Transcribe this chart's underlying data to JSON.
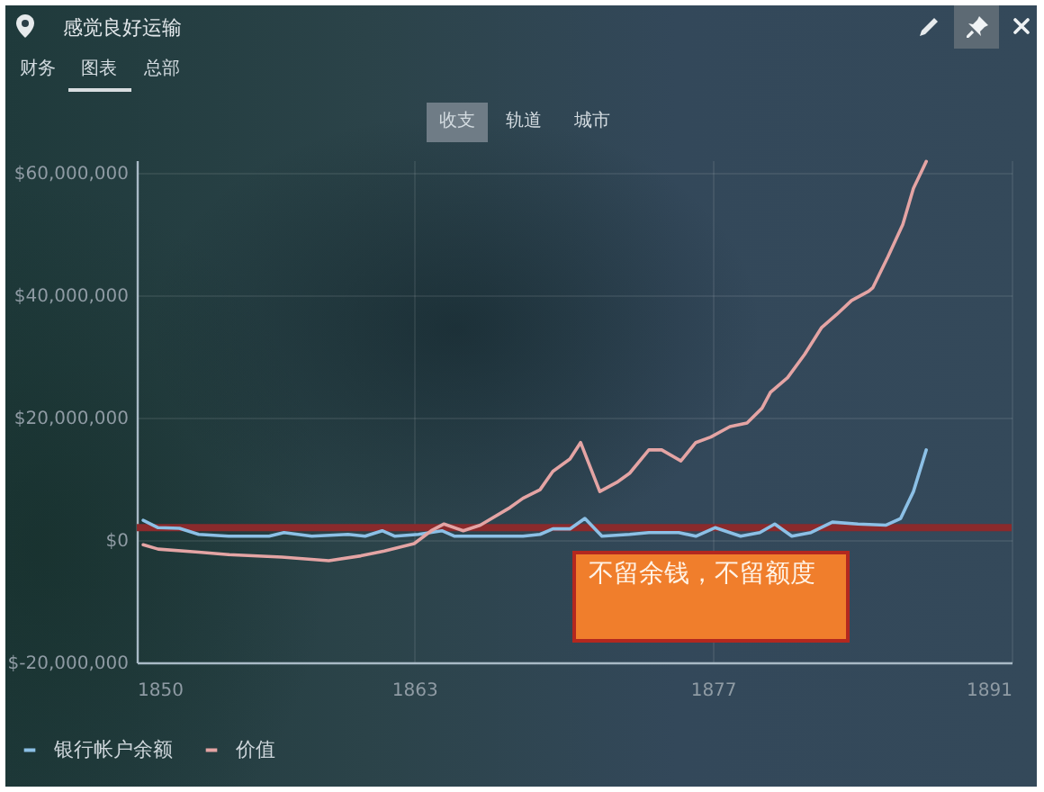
{
  "chart_data": {
    "type": "line",
    "title": "感觉良好运输",
    "annotations": [
      "财务",
      "图表",
      "总部",
      "收支",
      "轨道",
      "城市",
      "不留余钱，不留额度"
    ],
    "series": [
      {
        "name": "银行帐户余额",
        "color": "#8cc0e6",
        "x": [
          1850.3,
          1851.0,
          1852.0,
          1852.9,
          1854.3,
          1856.2,
          1856.9,
          1858.2,
          1859.9,
          1860.7,
          1861.5,
          1862.1,
          1863.2,
          1864.3,
          1864.9,
          1868.1,
          1868.9,
          1869.5,
          1870.3,
          1871.0,
          1871.8,
          1873.1,
          1874.0,
          1875.4,
          1876.2,
          1877.1,
          1878.3,
          1879.2,
          1879.9,
          1880.7,
          1881.6,
          1882.6,
          1883.8,
          1885.1,
          1885.8,
          1886.4,
          1887.0
        ],
        "values": [
          3200000,
          2000000,
          1900000,
          900000,
          600000,
          600000,
          1200000,
          600000,
          900000,
          600000,
          1500000,
          600000,
          900000,
          1500000,
          600000,
          600000,
          900000,
          1800000,
          1800000,
          3500000,
          600000,
          900000,
          1200000,
          1200000,
          600000,
          2000000,
          600000,
          1200000,
          2600000,
          600000,
          1200000,
          2900000,
          2600000,
          2400000,
          3500000,
          7900000,
          14700000
        ]
      },
      {
        "name": "价值",
        "color": "#e4a4a4",
        "x": [
          1850.3,
          1851.0,
          1852.9,
          1854.3,
          1856.8,
          1859.0,
          1860.5,
          1861.6,
          1863.0,
          1863.8,
          1864.4,
          1865.3,
          1866.1,
          1867.5,
          1868.1,
          1868.9,
          1869.5,
          1870.3,
          1870.8,
          1871.7,
          1872.5,
          1873.1,
          1874.0,
          1874.6,
          1875.5,
          1876.2,
          1876.9,
          1877.8,
          1878.6,
          1879.3,
          1879.7,
          1880.5,
          1881.3,
          1882.1,
          1882.8,
          1883.5,
          1884.3,
          1884.5,
          1885.2,
          1885.9,
          1886.4,
          1887.0
        ],
        "values": [
          -800000,
          -1500000,
          -2000000,
          -2400000,
          -2800000,
          -3400000,
          -2600000,
          -1800000,
          -600000,
          1500000,
          2600000,
          1500000,
          2400000,
          5300000,
          6800000,
          8200000,
          11200000,
          13200000,
          15900000,
          7900000,
          9400000,
          10900000,
          14700000,
          14700000,
          12900000,
          15900000,
          16800000,
          18500000,
          19100000,
          21500000,
          24100000,
          26500000,
          30300000,
          34700000,
          36800000,
          39100000,
          40600000,
          41200000,
          46200000,
          51500000,
          57400000,
          61800000
        ]
      }
    ],
    "xlim": [
      1850,
      1891
    ],
    "xticks": [
      1850,
      1863,
      1877,
      1891
    ],
    "ylim": [
      -20000000,
      62000000
    ],
    "yticks": [
      {
        "value": -20000000,
        "label": "$-20,000,000"
      },
      {
        "value": 0,
        "label": "$0"
      },
      {
        "value": 20000000,
        "label": "$20,000,000"
      },
      {
        "value": 40000000,
        "label": "$40,000,000"
      },
      {
        "value": 60000000,
        "label": "$60,000,000"
      }
    ],
    "grid": true,
    "legend": "bottom left",
    "ref_lines": [
      {
        "axis": "y",
        "value": 2000000,
        "color": "#8a2a2c"
      }
    ]
  }
}
